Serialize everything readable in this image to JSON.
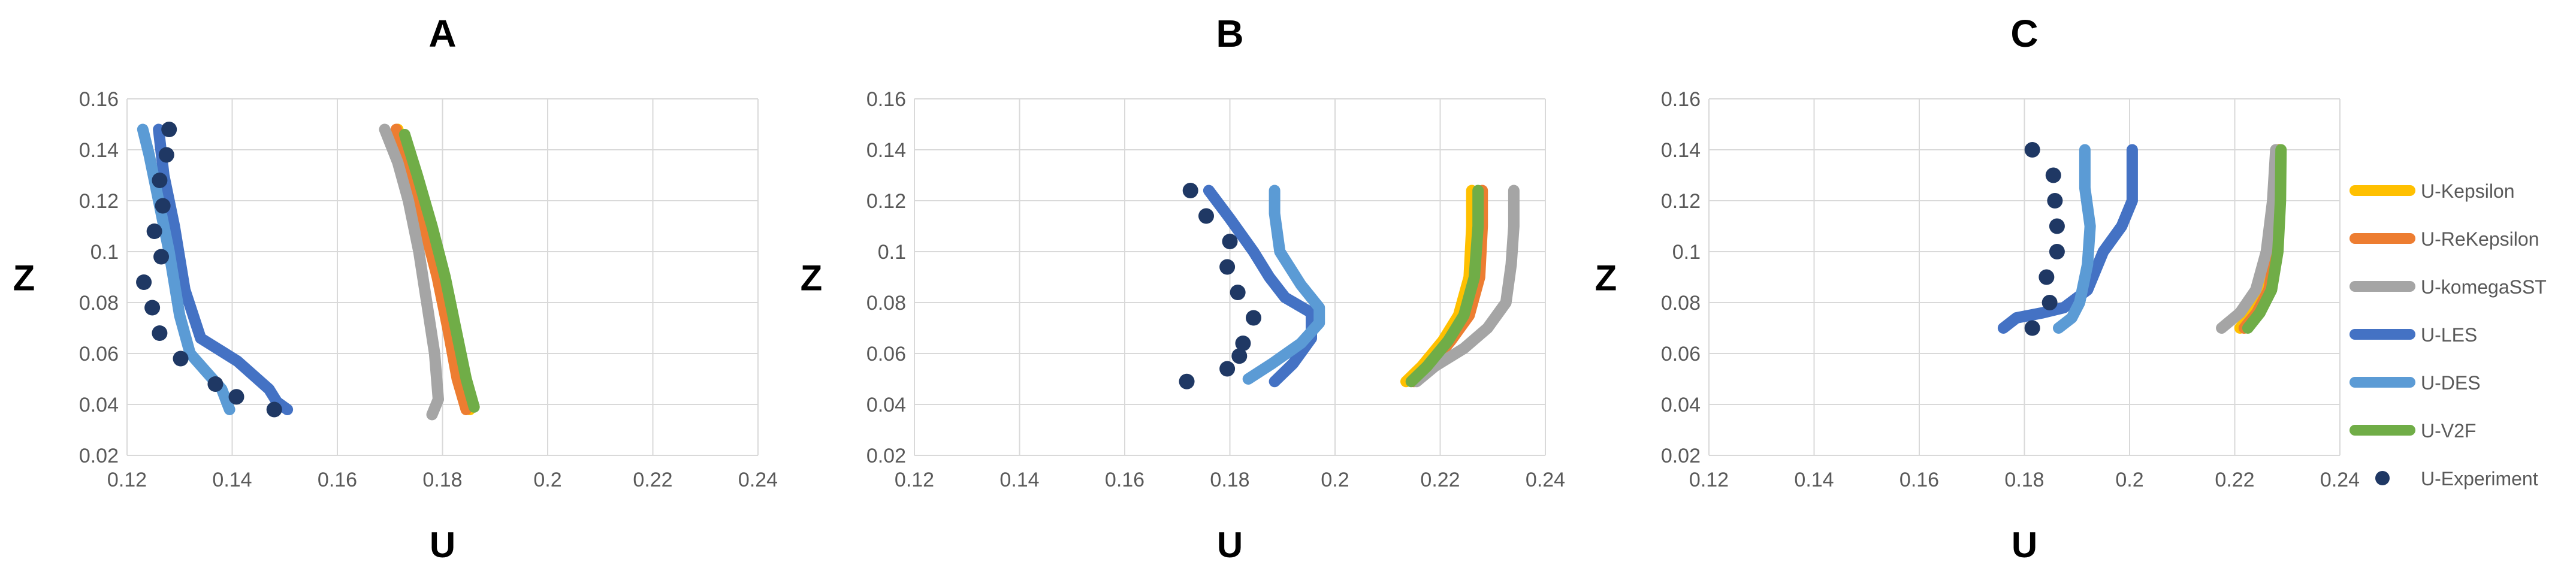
{
  "chart_data": [
    {
      "type": "scatter",
      "title": "A",
      "xlabel": "U",
      "ylabel": "Z",
      "xlim": [
        0.12,
        0.24
      ],
      "ylim": [
        0.02,
        0.16
      ],
      "x_ticks": [
        "0.12",
        "0.14",
        "0.16",
        "0.18",
        "0.2",
        "0.22",
        "0.24"
      ],
      "y_ticks": [
        "0.02",
        "0.04",
        "0.06",
        "0.08",
        "0.1",
        "0.12",
        "0.14",
        "0.16"
      ],
      "grid": true,
      "series": [
        {
          "name": "U-Kepsilon",
          "kind": "line",
          "color": "#FFC000",
          "x": [
            0.1852,
            0.1835,
            0.1815,
            0.1795,
            0.177,
            0.174,
            0.1715
          ],
          "y": [
            0.038,
            0.05,
            0.07,
            0.09,
            0.11,
            0.13,
            0.148
          ]
        },
        {
          "name": "U-ReKepsilon",
          "kind": "line",
          "color": "#ED7D31",
          "x": [
            0.1845,
            0.1828,
            0.181,
            0.179,
            0.1765,
            0.1738,
            0.1712
          ],
          "y": [
            0.038,
            0.05,
            0.07,
            0.09,
            0.11,
            0.13,
            0.148
          ]
        },
        {
          "name": "U-komegaSST",
          "kind": "line",
          "color": "#A5A5A5",
          "x": [
            0.178,
            0.1792,
            0.1785,
            0.177,
            0.1755,
            0.1735,
            0.1715,
            0.169
          ],
          "y": [
            0.036,
            0.042,
            0.06,
            0.08,
            0.1,
            0.12,
            0.135,
            0.148
          ]
        },
        {
          "name": "U-LES",
          "kind": "line",
          "color": "#4472C4",
          "x": [
            0.1505,
            0.1485,
            0.147,
            0.141,
            0.134,
            0.131,
            0.129,
            0.127,
            0.126
          ],
          "y": [
            0.038,
            0.041,
            0.046,
            0.057,
            0.066,
            0.085,
            0.11,
            0.13,
            0.148
          ]
        },
        {
          "name": "U-DES",
          "kind": "line",
          "color": "#5B9BD5",
          "x": [
            0.1395,
            0.138,
            0.135,
            0.132,
            0.13,
            0.128,
            0.126,
            0.1242,
            0.123
          ],
          "y": [
            0.038,
            0.046,
            0.053,
            0.06,
            0.075,
            0.1,
            0.12,
            0.138,
            0.148
          ]
        },
        {
          "name": "U-V2F",
          "kind": "line",
          "color": "#70AD47",
          "x": [
            0.186,
            0.1845,
            0.1825,
            0.1805,
            0.178,
            0.1752,
            0.1728
          ],
          "y": [
            0.039,
            0.05,
            0.07,
            0.09,
            0.11,
            0.13,
            0.146
          ]
        },
        {
          "name": "U-Experiment",
          "kind": "marker",
          "color": "#1F3864",
          "x": [
            0.128,
            0.1275,
            0.1262,
            0.1268,
            0.1252,
            0.1265,
            0.1232,
            0.1248,
            0.1262,
            0.1302,
            0.1368,
            0.1408,
            0.148
          ],
          "y": [
            0.148,
            0.138,
            0.128,
            0.118,
            0.108,
            0.098,
            0.088,
            0.078,
            0.068,
            0.058,
            0.048,
            0.043,
            0.038
          ]
        }
      ]
    },
    {
      "type": "scatter",
      "title": "B",
      "xlabel": "U",
      "ylabel": "Z",
      "xlim": [
        0.12,
        0.24
      ],
      "ylim": [
        0.02,
        0.16
      ],
      "x_ticks": [
        "0.12",
        "0.14",
        "0.16",
        "0.18",
        "0.2",
        "0.22",
        "0.24"
      ],
      "y_ticks": [
        "0.02",
        "0.04",
        "0.06",
        "0.08",
        "0.1",
        "0.12",
        "0.14",
        "0.16"
      ],
      "grid": true,
      "series": [
        {
          "name": "U-Kepsilon",
          "kind": "line",
          "color": "#FFC000",
          "x": [
            0.2135,
            0.2165,
            0.2205,
            0.2235,
            0.2255,
            0.226,
            0.226
          ],
          "y": [
            0.049,
            0.055,
            0.065,
            0.075,
            0.09,
            0.11,
            0.124
          ]
        },
        {
          "name": "U-ReKepsilon",
          "kind": "line",
          "color": "#ED7D31",
          "x": [
            0.215,
            0.218,
            0.222,
            0.2255,
            0.2275,
            0.228,
            0.228
          ],
          "y": [
            0.049,
            0.055,
            0.065,
            0.075,
            0.09,
            0.11,
            0.124
          ]
        },
        {
          "name": "U-komegaSST",
          "kind": "line",
          "color": "#A5A5A5",
          "x": [
            0.2155,
            0.219,
            0.2245,
            0.229,
            0.2325,
            0.2335,
            0.234,
            0.234
          ],
          "y": [
            0.049,
            0.055,
            0.062,
            0.07,
            0.08,
            0.095,
            0.11,
            0.124
          ]
        },
        {
          "name": "U-LES",
          "kind": "line",
          "color": "#4472C4",
          "x": [
            0.1885,
            0.192,
            0.1955,
            0.1955,
            0.1905,
            0.1875,
            0.1845,
            0.18,
            0.176
          ],
          "y": [
            0.049,
            0.056,
            0.066,
            0.076,
            0.082,
            0.09,
            0.1,
            0.113,
            0.124
          ]
        },
        {
          "name": "U-DES",
          "kind": "line",
          "color": "#5B9BD5",
          "x": [
            0.1835,
            0.188,
            0.1935,
            0.197,
            0.197,
            0.1935,
            0.1895,
            0.1885,
            0.1885
          ],
          "y": [
            0.05,
            0.056,
            0.064,
            0.072,
            0.078,
            0.087,
            0.1,
            0.115,
            0.124
          ]
        },
        {
          "name": "U-V2F",
          "kind": "line",
          "color": "#70AD47",
          "x": [
            0.2145,
            0.2175,
            0.2215,
            0.2245,
            0.2265,
            0.2272,
            0.2272
          ],
          "y": [
            0.049,
            0.055,
            0.065,
            0.075,
            0.09,
            0.11,
            0.124
          ]
        },
        {
          "name": "U-Experiment",
          "kind": "marker",
          "color": "#1F3864",
          "x": [
            0.1725,
            0.1755,
            0.18,
            0.1795,
            0.1815,
            0.1845,
            0.1825,
            0.1818,
            0.1795,
            0.1718
          ],
          "y": [
            0.124,
            0.114,
            0.104,
            0.094,
            0.084,
            0.074,
            0.064,
            0.059,
            0.054,
            0.049
          ]
        }
      ]
    },
    {
      "type": "scatter",
      "title": "C",
      "xlabel": "U",
      "ylabel": "Z",
      "xlim": [
        0.12,
        0.24
      ],
      "ylim": [
        0.02,
        0.16
      ],
      "x_ticks": [
        "0.12",
        "0.14",
        "0.16",
        "0.18",
        "0.2",
        "0.22",
        "0.24"
      ],
      "y_ticks": [
        "0.02",
        "0.04",
        "0.06",
        "0.08",
        "0.1",
        "0.12",
        "0.14",
        "0.16"
      ],
      "grid": true,
      "legend_position": "right",
      "series": [
        {
          "name": "U-Kepsilon",
          "kind": "line",
          "color": "#FFC000",
          "x": [
            0.221,
            0.2235,
            0.226,
            0.2275,
            0.228,
            0.2282
          ],
          "y": [
            0.07,
            0.076,
            0.085,
            0.1,
            0.12,
            0.14
          ]
        },
        {
          "name": "U-ReKepsilon",
          "kind": "line",
          "color": "#ED7D31",
          "x": [
            0.2218,
            0.2242,
            0.2265,
            0.2278,
            0.2283,
            0.2285
          ],
          "y": [
            0.07,
            0.076,
            0.085,
            0.1,
            0.12,
            0.14
          ]
        },
        {
          "name": "U-komegaSST",
          "kind": "line",
          "color": "#A5A5A5",
          "x": [
            0.2175,
            0.221,
            0.224,
            0.226,
            0.2272,
            0.2278
          ],
          "y": [
            0.07,
            0.076,
            0.085,
            0.1,
            0.12,
            0.14
          ]
        },
        {
          "name": "U-LES",
          "kind": "line",
          "color": "#4472C4",
          "x": [
            0.176,
            0.1785,
            0.1835,
            0.1875,
            0.192,
            0.195,
            0.1985,
            0.2005,
            0.2005
          ],
          "y": [
            0.07,
            0.074,
            0.076,
            0.078,
            0.085,
            0.1,
            0.11,
            0.12,
            0.14
          ]
        },
        {
          "name": "U-DES",
          "kind": "line",
          "color": "#5B9BD5",
          "x": [
            0.1865,
            0.189,
            0.1905,
            0.192,
            0.1925,
            0.1915,
            0.1915
          ],
          "y": [
            0.07,
            0.074,
            0.08,
            0.095,
            0.11,
            0.125,
            0.14
          ]
        },
        {
          "name": "U-V2F",
          "kind": "line",
          "color": "#70AD47",
          "x": [
            0.2225,
            0.2248,
            0.227,
            0.2282,
            0.2287,
            0.2288
          ],
          "y": [
            0.07,
            0.076,
            0.085,
            0.1,
            0.12,
            0.14
          ]
        },
        {
          "name": "U-Experiment",
          "kind": "marker",
          "color": "#1F3864",
          "x": [
            0.1815,
            0.1855,
            0.1858,
            0.1862,
            0.1862,
            0.1842,
            0.1848,
            0.1815
          ],
          "y": [
            0.14,
            0.13,
            0.12,
            0.11,
            0.1,
            0.09,
            0.08,
            0.07
          ]
        }
      ]
    }
  ],
  "legend": [
    {
      "label": "U-Kepsilon",
      "color": "#FFC000",
      "kind": "line"
    },
    {
      "label": "U-ReKepsilon",
      "color": "#ED7D31",
      "kind": "line"
    },
    {
      "label": "U-komegaSST",
      "color": "#A5A5A5",
      "kind": "line"
    },
    {
      "label": "U-LES",
      "color": "#4472C4",
      "kind": "line"
    },
    {
      "label": "U-DES",
      "color": "#5B9BD5",
      "kind": "line"
    },
    {
      "label": "U-V2F",
      "color": "#70AD47",
      "kind": "line"
    },
    {
      "label": "U-Experiment",
      "color": "#1F3864",
      "kind": "marker"
    }
  ]
}
